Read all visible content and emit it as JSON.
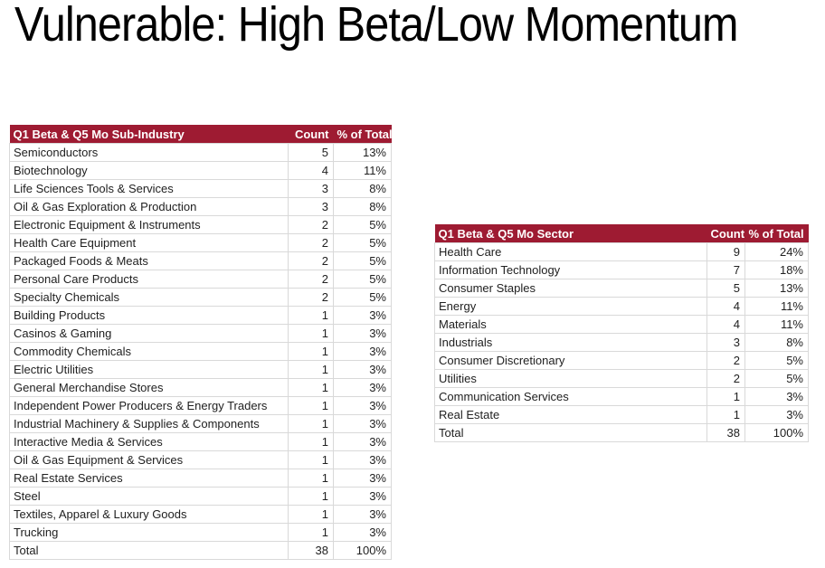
{
  "page": {
    "title": "Vulnerable: High Beta/Low Momentum"
  },
  "colors": {
    "header_bg": "#9E1B32",
    "header_text": "#FFFFFF",
    "grid_line": "#D9D9D9",
    "body_text": "#212121",
    "title_text": "#000000"
  },
  "tables": {
    "sub_industry": {
      "headers": [
        "Q1 Beta & Q5 Mo Sub-Industry",
        "Count",
        "% of Total"
      ],
      "rows": [
        [
          "Semiconductors",
          "5",
          "13%"
        ],
        [
          "Biotechnology",
          "4",
          "11%"
        ],
        [
          "Life Sciences Tools & Services",
          "3",
          "8%"
        ],
        [
          "Oil & Gas Exploration & Production",
          "3",
          "8%"
        ],
        [
          "Electronic Equipment & Instruments",
          "2",
          "5%"
        ],
        [
          "Health Care Equipment",
          "2",
          "5%"
        ],
        [
          "Packaged Foods & Meats",
          "2",
          "5%"
        ],
        [
          "Personal Care Products",
          "2",
          "5%"
        ],
        [
          "Specialty Chemicals",
          "2",
          "5%"
        ],
        [
          "Building Products",
          "1",
          "3%"
        ],
        [
          "Casinos & Gaming",
          "1",
          "3%"
        ],
        [
          "Commodity Chemicals",
          "1",
          "3%"
        ],
        [
          "Electric Utilities",
          "1",
          "3%"
        ],
        [
          "General Merchandise Stores",
          "1",
          "3%"
        ],
        [
          "Independent Power Producers & Energy Traders",
          "1",
          "3%"
        ],
        [
          "Industrial Machinery & Supplies & Components",
          "1",
          "3%"
        ],
        [
          "Interactive Media & Services",
          "1",
          "3%"
        ],
        [
          "Oil & Gas Equipment & Services",
          "1",
          "3%"
        ],
        [
          "Real Estate Services",
          "1",
          "3%"
        ],
        [
          "Steel",
          "1",
          "3%"
        ],
        [
          "Textiles, Apparel & Luxury Goods",
          "1",
          "3%"
        ],
        [
          "Trucking",
          "1",
          "3%"
        ],
        [
          "Total",
          "38",
          "100%"
        ]
      ]
    },
    "sector": {
      "headers": [
        "Q1 Beta & Q5 Mo Sector",
        "Count",
        "% of Total"
      ],
      "rows": [
        [
          "Health Care",
          "9",
          "24%"
        ],
        [
          "Information Technology",
          "7",
          "18%"
        ],
        [
          "Consumer Staples",
          "5",
          "13%"
        ],
        [
          "Energy",
          "4",
          "11%"
        ],
        [
          "Materials",
          "4",
          "11%"
        ],
        [
          "Industrials",
          "3",
          "8%"
        ],
        [
          "Consumer Discretionary",
          "2",
          "5%"
        ],
        [
          "Utilities",
          "2",
          "5%"
        ],
        [
          "Communication Services",
          "1",
          "3%"
        ],
        [
          "Real Estate",
          "1",
          "3%"
        ],
        [
          "Total",
          "38",
          "100%"
        ]
      ]
    }
  }
}
